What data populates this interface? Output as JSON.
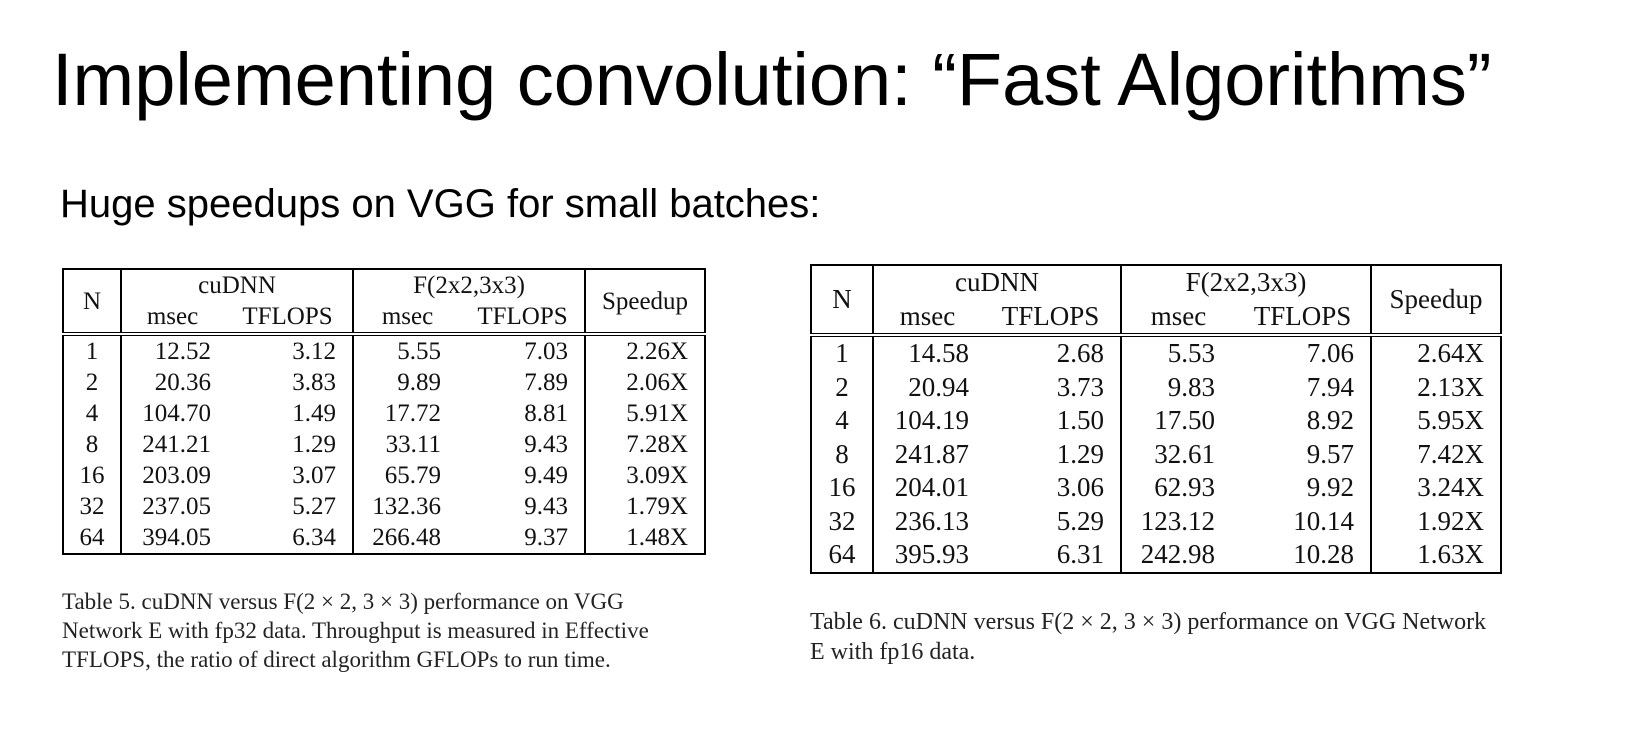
{
  "slide": {
    "title": "Implementing convolution: “Fast Algorithms”",
    "subtitle": "Huge speedups on VGG for small batches:"
  },
  "tables": [
    {
      "header": {
        "n": "N",
        "group1": "cuDNN",
        "group2": "F(2x2,3x3)",
        "speedup": "Speedup",
        "msec": "msec",
        "tflops": "TFLOPS"
      },
      "rows": [
        {
          "n": "1",
          "cu_msec": "12.52",
          "cu_tflops": "3.12",
          "f_msec": "5.55",
          "f_tflops": "7.03",
          "speedup": "2.26X"
        },
        {
          "n": "2",
          "cu_msec": "20.36",
          "cu_tflops": "3.83",
          "f_msec": "9.89",
          "f_tflops": "7.89",
          "speedup": "2.06X"
        },
        {
          "n": "4",
          "cu_msec": "104.70",
          "cu_tflops": "1.49",
          "f_msec": "17.72",
          "f_tflops": "8.81",
          "speedup": "5.91X"
        },
        {
          "n": "8",
          "cu_msec": "241.21",
          "cu_tflops": "1.29",
          "f_msec": "33.11",
          "f_tflops": "9.43",
          "speedup": "7.28X"
        },
        {
          "n": "16",
          "cu_msec": "203.09",
          "cu_tflops": "3.07",
          "f_msec": "65.79",
          "f_tflops": "9.49",
          "speedup": "3.09X"
        },
        {
          "n": "32",
          "cu_msec": "237.05",
          "cu_tflops": "5.27",
          "f_msec": "132.36",
          "f_tflops": "9.43",
          "speedup": "1.79X"
        },
        {
          "n": "64",
          "cu_msec": "394.05",
          "cu_tflops": "6.34",
          "f_msec": "266.48",
          "f_tflops": "9.37",
          "speedup": "1.48X"
        }
      ],
      "caption": "Table 5. cuDNN versus F(2 × 2, 3 × 3) performance on VGG Network E with fp32 data. Throughput is measured in Effective TFLOPS, the ratio of direct algorithm GFLOPs to run time."
    },
    {
      "header": {
        "n": "N",
        "group1": "cuDNN",
        "group2": "F(2x2,3x3)",
        "speedup": "Speedup",
        "msec": "msec",
        "tflops": "TFLOPS"
      },
      "rows": [
        {
          "n": "1",
          "cu_msec": "14.58",
          "cu_tflops": "2.68",
          "f_msec": "5.53",
          "f_tflops": "7.06",
          "speedup": "2.64X"
        },
        {
          "n": "2",
          "cu_msec": "20.94",
          "cu_tflops": "3.73",
          "f_msec": "9.83",
          "f_tflops": "7.94",
          "speedup": "2.13X"
        },
        {
          "n": "4",
          "cu_msec": "104.19",
          "cu_tflops": "1.50",
          "f_msec": "17.50",
          "f_tflops": "8.92",
          "speedup": "5.95X"
        },
        {
          "n": "8",
          "cu_msec": "241.87",
          "cu_tflops": "1.29",
          "f_msec": "32.61",
          "f_tflops": "9.57",
          "speedup": "7.42X"
        },
        {
          "n": "16",
          "cu_msec": "204.01",
          "cu_tflops": "3.06",
          "f_msec": "62.93",
          "f_tflops": "9.92",
          "speedup": "3.24X"
        },
        {
          "n": "32",
          "cu_msec": "236.13",
          "cu_tflops": "5.29",
          "f_msec": "123.12",
          "f_tflops": "10.14",
          "speedup": "1.92X"
        },
        {
          "n": "64",
          "cu_msec": "395.93",
          "cu_tflops": "6.31",
          "f_msec": "242.98",
          "f_tflops": "10.28",
          "speedup": "1.63X"
        }
      ],
      "caption": "Table 6. cuDNN versus F(2 × 2, 3 × 3) performance on VGG Network E with fp16 data."
    }
  ]
}
